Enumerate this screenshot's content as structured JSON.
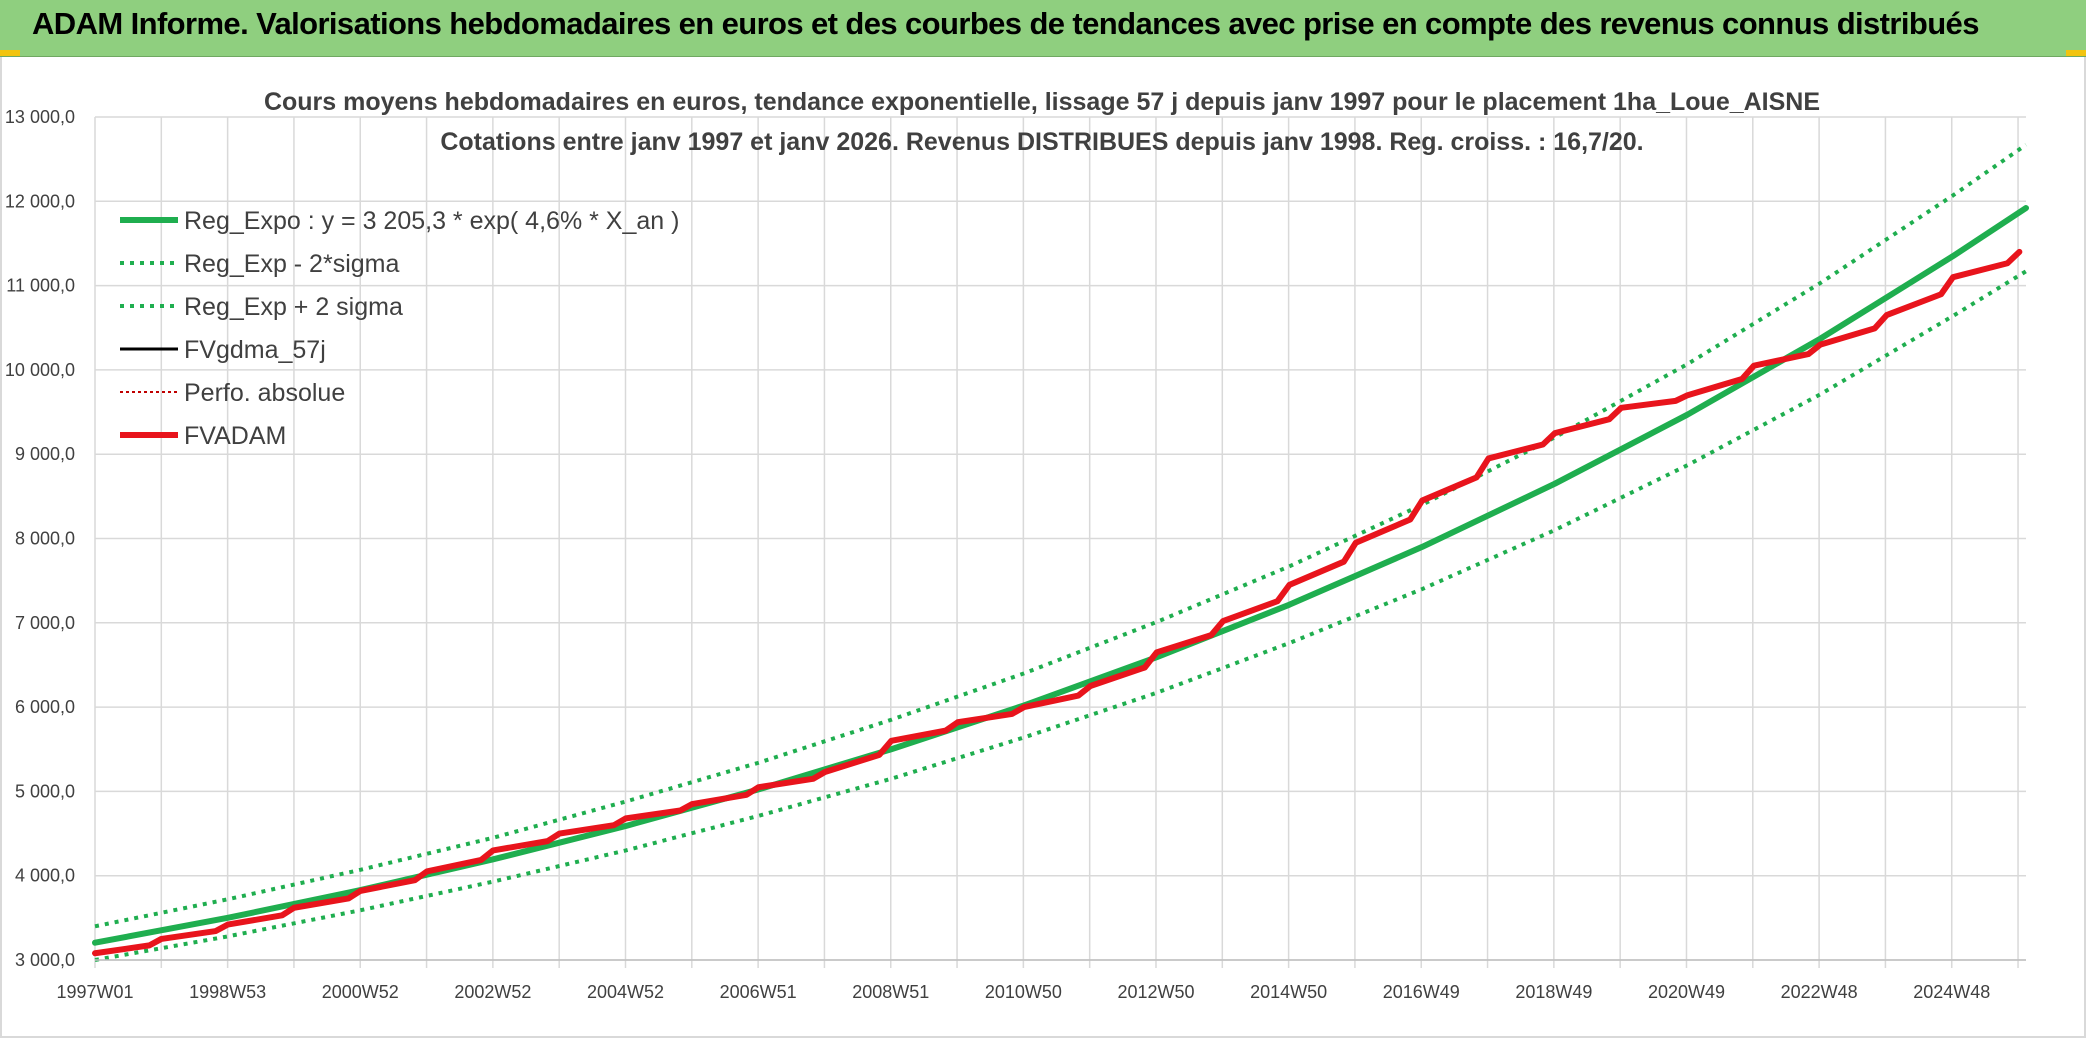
{
  "header": {
    "title": "ADAM Informe. Valorisations hebdomadaires en euros et des courbes de tendances avec prise en compte des revenus connus distribués"
  },
  "colors": {
    "header_bg": "#8fcf7f",
    "trend": "#1fae4f",
    "sigma": "#1fae4f",
    "fvgdma": "#000000",
    "perfo": "#c00000",
    "fvadam": "#e8141c",
    "grid": "#d9d9d9"
  },
  "chart_data": {
    "type": "line",
    "title": "Cours moyens hebdomadaires en euros, tendance exponentielle, lissage 57 j depuis janv 1997 pour le placement 1ha_Loue_AISNE",
    "subtitle": "Cotations entre janv 1997 et janv 2026. Revenus DISTRIBUES depuis janv 1998. Reg. croiss. : 16,7/20.",
    "xlabel": "",
    "ylabel": "",
    "x_tick_labels": [
      "1997W01",
      "1998W53",
      "2000W52",
      "2002W52",
      "2004W52",
      "2006W51",
      "2008W51",
      "2010W50",
      "2012W50",
      "2014W50",
      "2016W49",
      "2018W49",
      "2020W49",
      "2022W48",
      "2024W48"
    ],
    "y_tick_labels": [
      "3 000,0",
      "4 000,0",
      "5 000,0",
      "6 000,0",
      "7 000,0",
      "8 000,0",
      "9 000,0",
      "10 000,0",
      "11 000,0",
      "12 000,0",
      "13 000,0"
    ],
    "ylim": [
      3000,
      13000
    ],
    "xlim": [
      1997.0,
      2026.1
    ],
    "grid": true,
    "legend_position": "top-left",
    "series": [
      {
        "name": "Reg_Expo : y = 3 205,3 * exp( 4,6% *  X_an )",
        "style": "solid-thick",
        "color": "#1fae4f",
        "x": [
          1997,
          1999,
          2001,
          2003,
          2005,
          2007,
          2009,
          2011,
          2013,
          2015,
          2017,
          2019,
          2021,
          2023,
          2025,
          2026.1
        ],
        "y": [
          3205,
          3500,
          3829,
          4194,
          4590,
          5024,
          5500,
          6020,
          6592,
          7215,
          7900,
          8650,
          9470,
          10370,
          11350,
          11920
        ]
      },
      {
        "name": "Reg_Exp - 2*sigma",
        "style": "dotted",
        "color": "#1fae4f",
        "x": [
          1997,
          1999,
          2001,
          2003,
          2005,
          2007,
          2009,
          2011,
          2013,
          2015,
          2017,
          2019,
          2021,
          2023,
          2025,
          2026.1
        ],
        "y": [
          3000,
          3280,
          3590,
          3930,
          4300,
          4710,
          5150,
          5640,
          6170,
          6760,
          7400,
          8100,
          8870,
          9710,
          10640,
          11170
        ]
      },
      {
        "name": "Reg_Exp + 2 sigma",
        "style": "dotted",
        "color": "#1fae4f",
        "x": [
          1997,
          1999,
          2001,
          2003,
          2005,
          2007,
          2009,
          2011,
          2013,
          2015,
          2017,
          2019,
          2021,
          2023,
          2025,
          2026.1
        ],
        "y": [
          3400,
          3720,
          4070,
          4450,
          4880,
          5340,
          5850,
          6400,
          7010,
          7670,
          8400,
          9200,
          10070,
          11030,
          12070,
          12670
        ]
      },
      {
        "name": "FVgdma_57j",
        "style": "solid",
        "color": "#000000",
        "x": [
          1997,
          1998,
          1999,
          2000,
          2001,
          2002,
          2003,
          2004,
          2005,
          2006,
          2007,
          2008,
          2009,
          2010,
          2011,
          2012,
          2013,
          2014,
          2015,
          2016,
          2017,
          2018,
          2019,
          2020,
          2021,
          2022,
          2023,
          2024,
          2025,
          2026
        ],
        "y": [
          3080,
          3250,
          3420,
          3620,
          3820,
          4050,
          4300,
          4500,
          4680,
          4850,
          5050,
          5230,
          5600,
          5820,
          6000,
          6250,
          6650,
          7020,
          7450,
          7950,
          8450,
          8950,
          9250,
          9550,
          9700,
          10050,
          10300,
          10650,
          11100,
          11400
        ]
      },
      {
        "name": "Perfo. absolue",
        "style": "dotted-thin",
        "color": "#c00000",
        "x": [
          1997,
          1998,
          1999,
          2000,
          2001,
          2002,
          2003,
          2004,
          2005,
          2006,
          2007,
          2008,
          2009,
          2010,
          2011,
          2012,
          2013,
          2014,
          2015,
          2016,
          2017,
          2018,
          2019,
          2020,
          2021,
          2022,
          2023,
          2024,
          2025,
          2026
        ],
        "y": [
          3080,
          3250,
          3420,
          3620,
          3820,
          4050,
          4300,
          4500,
          4680,
          4850,
          5050,
          5230,
          5600,
          5820,
          6000,
          6250,
          6650,
          7020,
          7450,
          7950,
          8450,
          8950,
          9250,
          9550,
          9700,
          10050,
          10300,
          10650,
          11100,
          11400
        ]
      },
      {
        "name": "FVADAM",
        "style": "solid-thick",
        "color": "#e8141c",
        "x": [
          1997,
          1998,
          1999,
          2000,
          2001,
          2002,
          2003,
          2004,
          2005,
          2006,
          2007,
          2008,
          2009,
          2010,
          2011,
          2012,
          2013,
          2014,
          2015,
          2016,
          2017,
          2018,
          2019,
          2020,
          2021,
          2022,
          2023,
          2024,
          2025,
          2026
        ],
        "y": [
          3080,
          3250,
          3420,
          3620,
          3820,
          4050,
          4300,
          4500,
          4680,
          4850,
          5050,
          5230,
          5600,
          5820,
          6000,
          6250,
          6650,
          7020,
          7450,
          7950,
          8450,
          8950,
          9250,
          9550,
          9700,
          10050,
          10300,
          10650,
          11100,
          11400
        ]
      }
    ]
  }
}
